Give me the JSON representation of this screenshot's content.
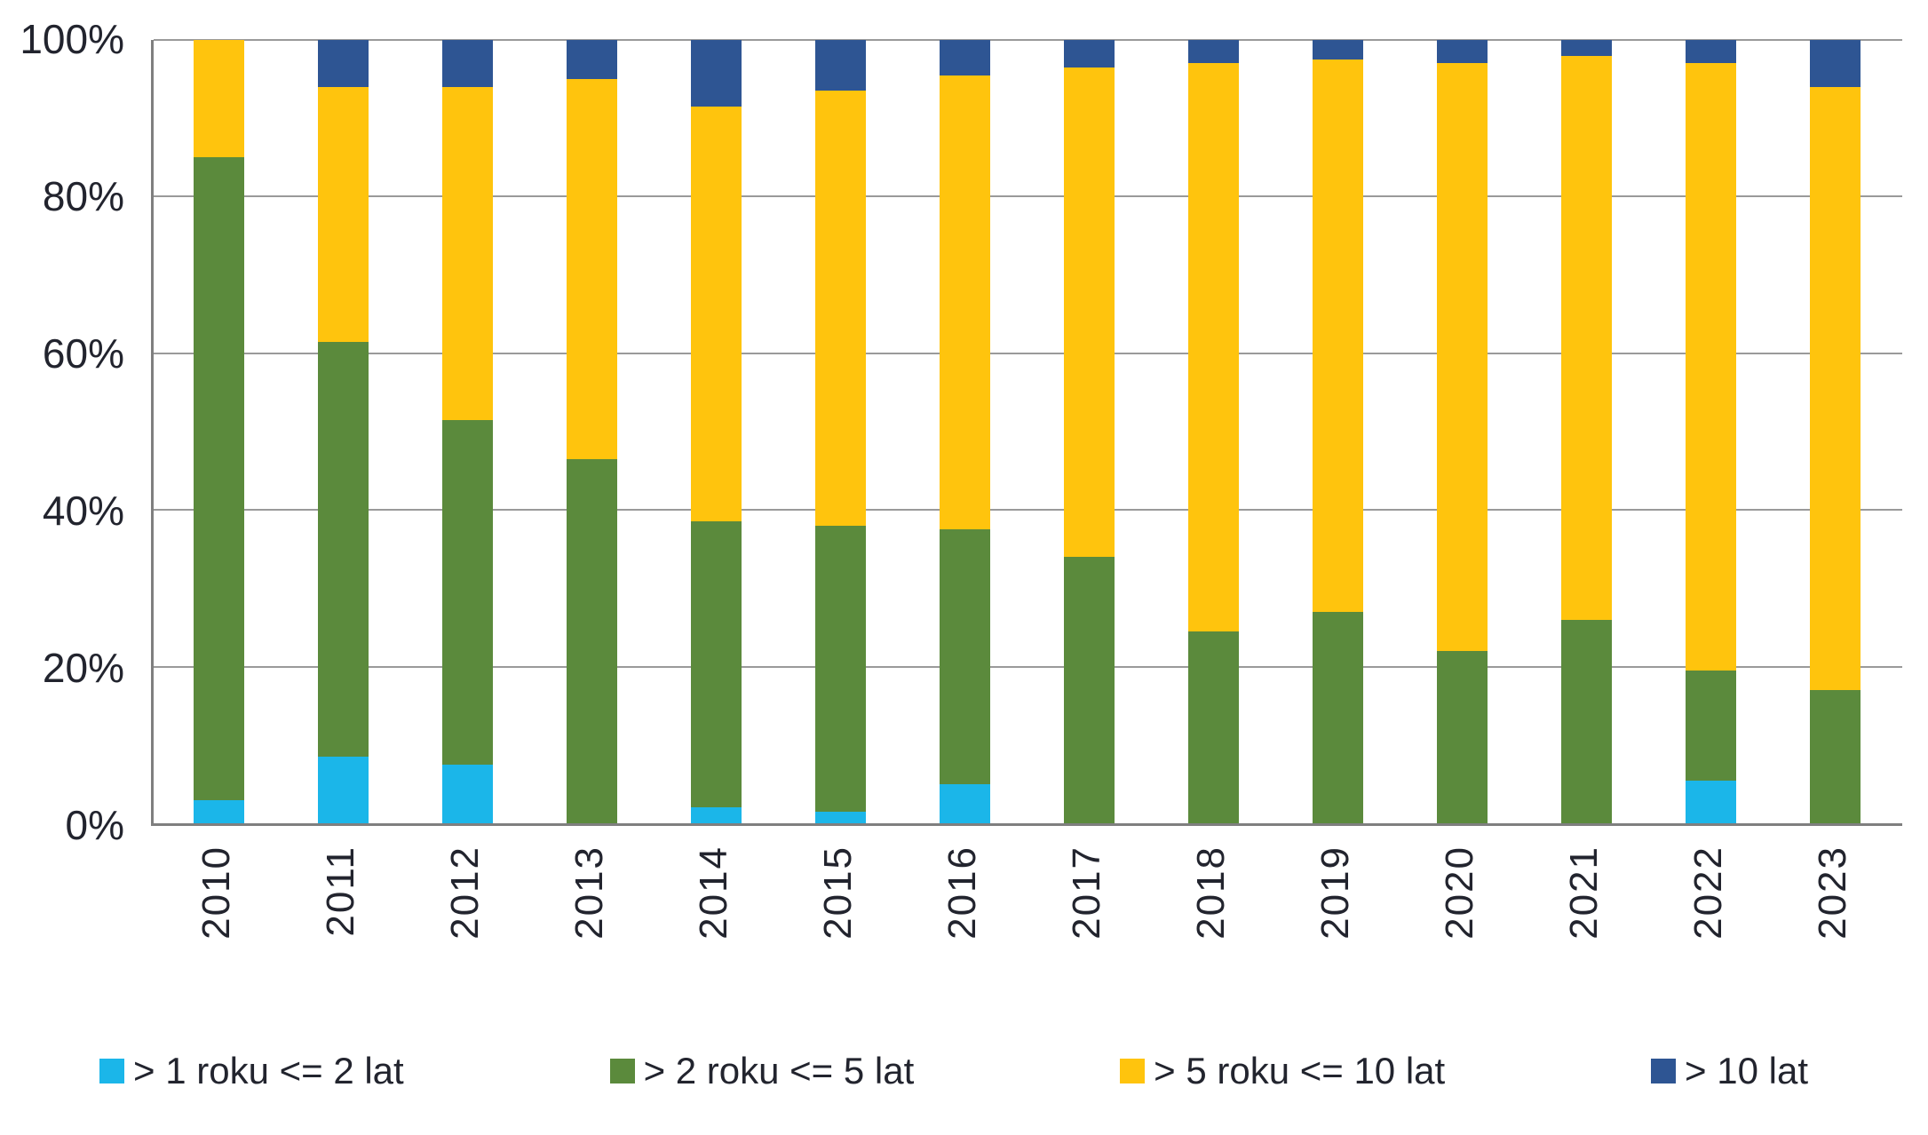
{
  "chart_data": {
    "type": "bar",
    "subtype": "stacked-100-percent",
    "title": "",
    "xlabel": "",
    "ylabel": "",
    "categories": [
      "2010",
      "2011",
      "2012",
      "2013",
      "2014",
      "2015",
      "2016",
      "2017",
      "2018",
      "2019",
      "2020",
      "2021",
      "2022",
      "2023"
    ],
    "series": [
      {
        "name": "> 1 roku <= 2 lat",
        "color": "#1BB6E9",
        "values": [
          3,
          8.5,
          7.5,
          0,
          2,
          1.5,
          5,
          0,
          0,
          0,
          0,
          0,
          5.5,
          0
        ]
      },
      {
        "name": "> 2 roku <= 5 lat",
        "color": "#5B8A3C",
        "values": [
          82,
          53,
          44,
          46.5,
          36.5,
          36.5,
          32.5,
          34,
          24.5,
          27,
          22,
          26,
          14,
          17
        ]
      },
      {
        "name": "> 5 roku <= 10 lat",
        "color": "#FFC40D",
        "values": [
          15,
          32.5,
          42.5,
          48.5,
          53,
          55.5,
          58,
          62.5,
          72.5,
          70.5,
          75,
          72,
          77.5,
          77
        ]
      },
      {
        "name": "> 10 lat",
        "color": "#2E5593",
        "values": [
          0,
          6,
          6,
          5,
          8.5,
          6.5,
          4.5,
          3.5,
          3,
          2.5,
          3,
          2,
          3,
          6
        ]
      }
    ],
    "yticks": [
      "100%",
      "80%",
      "60%",
      "40%",
      "20%",
      "0%"
    ],
    "ylim": [
      0,
      100
    ],
    "grid": true,
    "gridline_percents": [
      100,
      80,
      60,
      40,
      20
    ],
    "legend_position": "bottom"
  },
  "colors": {
    "axis_line": "#7f7f7f",
    "gridline": "#9a9a9a",
    "text": "#22242e",
    "background": "#ffffff"
  }
}
